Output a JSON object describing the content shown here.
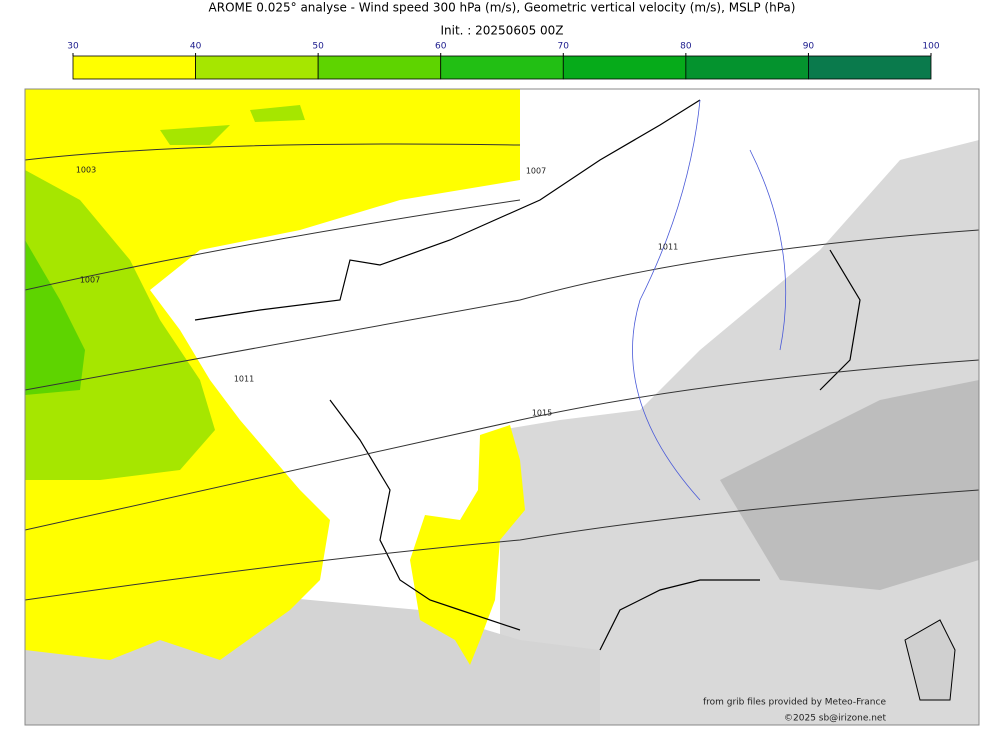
{
  "title": "AROME 0.025° analyse - Wind speed 300 hPa (m/s), Geometric vertical velocity (m/s), MSLP (hPa)",
  "subtitle": "Init. : 20250605 00Z",
  "colorbar": {
    "ticks": [
      30,
      40,
      50,
      60,
      70,
      80,
      90,
      100
    ],
    "colors": [
      "#ffff00",
      "#a6e600",
      "#5ed400",
      "#22bf14",
      "#06ab1a",
      "#04932e",
      "#0a7a4c"
    ]
  },
  "isobar_labels": [
    "1003",
    "1007",
    "1007",
    "1011",
    "1011",
    "1015"
  ],
  "credits": [
    "from grib files provided by Meteo-France",
    "©2025 sb@irizone.net"
  ]
}
